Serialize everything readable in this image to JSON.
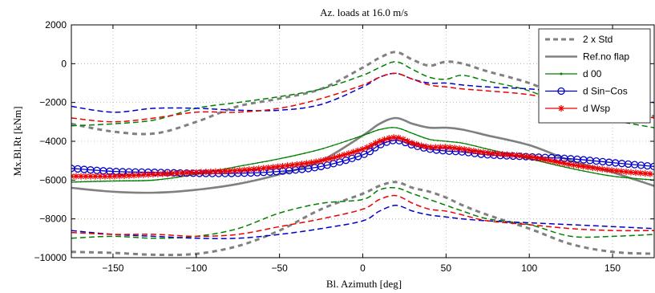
{
  "chart_data": {
    "type": "line",
    "title": "Az. loads at 16.0 m/s",
    "xlabel": "Bl. Azimuth [deg]",
    "ylabel": "Mx.Bl.Rt [kNm]",
    "xlim": [
      -175,
      175
    ],
    "ylim": [
      -10000,
      2000
    ],
    "xticks": [
      -150,
      -100,
      -50,
      0,
      50,
      100,
      150
    ],
    "yticks": [
      -10000,
      -8000,
      -6000,
      -4000,
      -2000,
      0,
      2000
    ],
    "grid": true,
    "legend_position": "top-right",
    "legend": [
      {
        "label": "2 x Std",
        "style": "gray-dashed"
      },
      {
        "label": "Ref.no flap",
        "style": "gray-solid"
      },
      {
        "label": "d 00",
        "style": "green-dot"
      },
      {
        "label": "d Sin−Cos",
        "style": "blue-circle"
      },
      {
        "label": "d Wsp",
        "style": "red-star"
      }
    ],
    "series": [
      {
        "name": "Ref.no flap",
        "color": "#808080",
        "dash": "",
        "width": 2.6,
        "x": [
          -175,
          -150,
          -125,
          -100,
          -75,
          -50,
          -25,
          0,
          10,
          20,
          30,
          40,
          50,
          60,
          75,
          100,
          125,
          150,
          175
        ],
        "y": [
          -6400,
          -6600,
          -6650,
          -6500,
          -6200,
          -5700,
          -5000,
          -3700,
          -3100,
          -2800,
          -3100,
          -3300,
          -3300,
          -3400,
          -3700,
          -4200,
          -5000,
          -5600,
          -6300
        ]
      },
      {
        "name": "Ref.no flap +2 Std",
        "color": "#808080",
        "dash": "6 5",
        "width": 3,
        "x": [
          -175,
          -150,
          -125,
          -100,
          -75,
          -50,
          -25,
          0,
          10,
          20,
          30,
          40,
          50,
          60,
          75,
          100,
          125,
          150,
          175
        ],
        "y": [
          -3100,
          -3500,
          -3600,
          -3000,
          -2200,
          -1800,
          -1300,
          -200,
          300,
          600,
          200,
          -100,
          100,
          0,
          -400,
          -1000,
          -1900,
          -2500,
          -2700
        ]
      },
      {
        "name": "Ref.no flap -2 Std",
        "color": "#808080",
        "dash": "6 5",
        "width": 3,
        "x": [
          -175,
          -150,
          -125,
          -100,
          -75,
          -50,
          -25,
          0,
          10,
          20,
          30,
          40,
          50,
          60,
          75,
          100,
          125,
          150,
          175
        ],
        "y": [
          -9700,
          -9750,
          -9850,
          -9800,
          -9400,
          -8600,
          -7500,
          -6700,
          -6300,
          -6100,
          -6400,
          -6600,
          -6900,
          -7300,
          -7800,
          -8500,
          -9300,
          -9700,
          -9800
        ]
      },
      {
        "name": "d 00",
        "color": "#008000",
        "dash": "",
        "width": 1.3,
        "x": [
          -175,
          -150,
          -125,
          -100,
          -75,
          -50,
          -25,
          0,
          10,
          20,
          30,
          40,
          50,
          60,
          75,
          100,
          125,
          150,
          175
        ],
        "y": [
          -6100,
          -6050,
          -6000,
          -5700,
          -5300,
          -4900,
          -4400,
          -3700,
          -3400,
          -3300,
          -3600,
          -3900,
          -4000,
          -4100,
          -4400,
          -4900,
          -5400,
          -5800,
          -6000
        ]
      },
      {
        "name": "d 00 +2 Std",
        "color": "#008000",
        "dash": "7 4",
        "width": 1.5,
        "x": [
          -175,
          -150,
          -125,
          -100,
          -75,
          -50,
          -25,
          0,
          10,
          20,
          30,
          40,
          50,
          60,
          75,
          100,
          125,
          150,
          175
        ],
        "y": [
          -3200,
          -3100,
          -2900,
          -2300,
          -2000,
          -1700,
          -1300,
          -600,
          -200,
          100,
          -300,
          -700,
          -800,
          -600,
          -900,
          -1400,
          -2300,
          -2900,
          -3300
        ]
      },
      {
        "name": "d 00 -2 Std",
        "color": "#008000",
        "dash": "7 4",
        "width": 1.5,
        "x": [
          -175,
          -150,
          -125,
          -100,
          -75,
          -50,
          -25,
          0,
          10,
          20,
          30,
          40,
          50,
          60,
          75,
          100,
          125,
          150,
          175
        ],
        "y": [
          -9000,
          -8900,
          -9000,
          -8900,
          -8500,
          -7700,
          -7200,
          -7000,
          -6500,
          -6400,
          -6700,
          -7000,
          -7300,
          -7600,
          -8000,
          -8300,
          -8900,
          -8900,
          -8800
        ]
      },
      {
        "name": "d Sin−Cos",
        "color": "#0000cc",
        "dash": "",
        "width": 1.3,
        "x": [
          -175,
          -150,
          -125,
          -100,
          -75,
          -50,
          -25,
          0,
          10,
          20,
          30,
          40,
          50,
          60,
          75,
          100,
          125,
          150,
          175
        ],
        "y": [
          -5400,
          -5550,
          -5600,
          -5650,
          -5650,
          -5550,
          -5300,
          -4700,
          -4200,
          -3950,
          -4200,
          -4400,
          -4500,
          -4550,
          -4700,
          -4800,
          -4900,
          -5100,
          -5300
        ]
      },
      {
        "name": "d Sin−Cos +2 Std",
        "color": "#0000cc",
        "dash": "7 4",
        "width": 1.5,
        "x": [
          -175,
          -150,
          -125,
          -100,
          -75,
          -50,
          -25,
          0,
          10,
          20,
          30,
          40,
          50,
          60,
          75,
          100,
          125,
          150,
          175
        ],
        "y": [
          -2200,
          -2500,
          -2300,
          -2300,
          -2400,
          -2400,
          -2100,
          -1200,
          -700,
          -500,
          -800,
          -1000,
          -1000,
          -1100,
          -1200,
          -1300,
          -1500,
          -1700,
          -2000
        ]
      },
      {
        "name": "d Sin−Cos -2 Std",
        "color": "#0000cc",
        "dash": "7 4",
        "width": 1.5,
        "x": [
          -175,
          -150,
          -125,
          -100,
          -75,
          -50,
          -25,
          0,
          10,
          20,
          30,
          40,
          50,
          60,
          75,
          100,
          125,
          150,
          175
        ],
        "y": [
          -8600,
          -8800,
          -8900,
          -9000,
          -9000,
          -8800,
          -8500,
          -8100,
          -7600,
          -7300,
          -7600,
          -7800,
          -7900,
          -8000,
          -8100,
          -8200,
          -8300,
          -8400,
          -8500
        ]
      },
      {
        "name": "d Wsp",
        "color": "#ee0000",
        "dash": "",
        "width": 1.3,
        "x": [
          -175,
          -150,
          -125,
          -100,
          -75,
          -50,
          -25,
          0,
          10,
          20,
          30,
          40,
          50,
          60,
          75,
          100,
          125,
          150,
          175
        ],
        "y": [
          -5800,
          -5800,
          -5700,
          -5600,
          -5500,
          -5300,
          -5000,
          -4400,
          -4000,
          -3800,
          -4100,
          -4300,
          -4300,
          -4400,
          -4600,
          -4800,
          -5200,
          -5500,
          -5700
        ]
      },
      {
        "name": "d Wsp +2 Std",
        "color": "#ee0000",
        "dash": "7 4",
        "width": 1.5,
        "x": [
          -175,
          -150,
          -125,
          -100,
          -75,
          -50,
          -25,
          0,
          10,
          20,
          30,
          40,
          50,
          60,
          75,
          100,
          125,
          150,
          175
        ],
        "y": [
          -2800,
          -3000,
          -2800,
          -2500,
          -2500,
          -2300,
          -1800,
          -1100,
          -700,
          -500,
          -800,
          -1100,
          -1200,
          -1300,
          -1400,
          -1600,
          -2000,
          -2400,
          -2800
        ]
      },
      {
        "name": "d Wsp -2 Std",
        "color": "#ee0000",
        "dash": "7 4",
        "width": 1.5,
        "x": [
          -175,
          -150,
          -125,
          -100,
          -75,
          -50,
          -25,
          0,
          10,
          20,
          30,
          40,
          50,
          60,
          75,
          100,
          125,
          150,
          175
        ],
        "y": [
          -8700,
          -8800,
          -8800,
          -8900,
          -8800,
          -8400,
          -8000,
          -7500,
          -7000,
          -6800,
          -7200,
          -7500,
          -7600,
          -7800,
          -8100,
          -8300,
          -8500,
          -8600,
          -8600
        ]
      }
    ]
  }
}
